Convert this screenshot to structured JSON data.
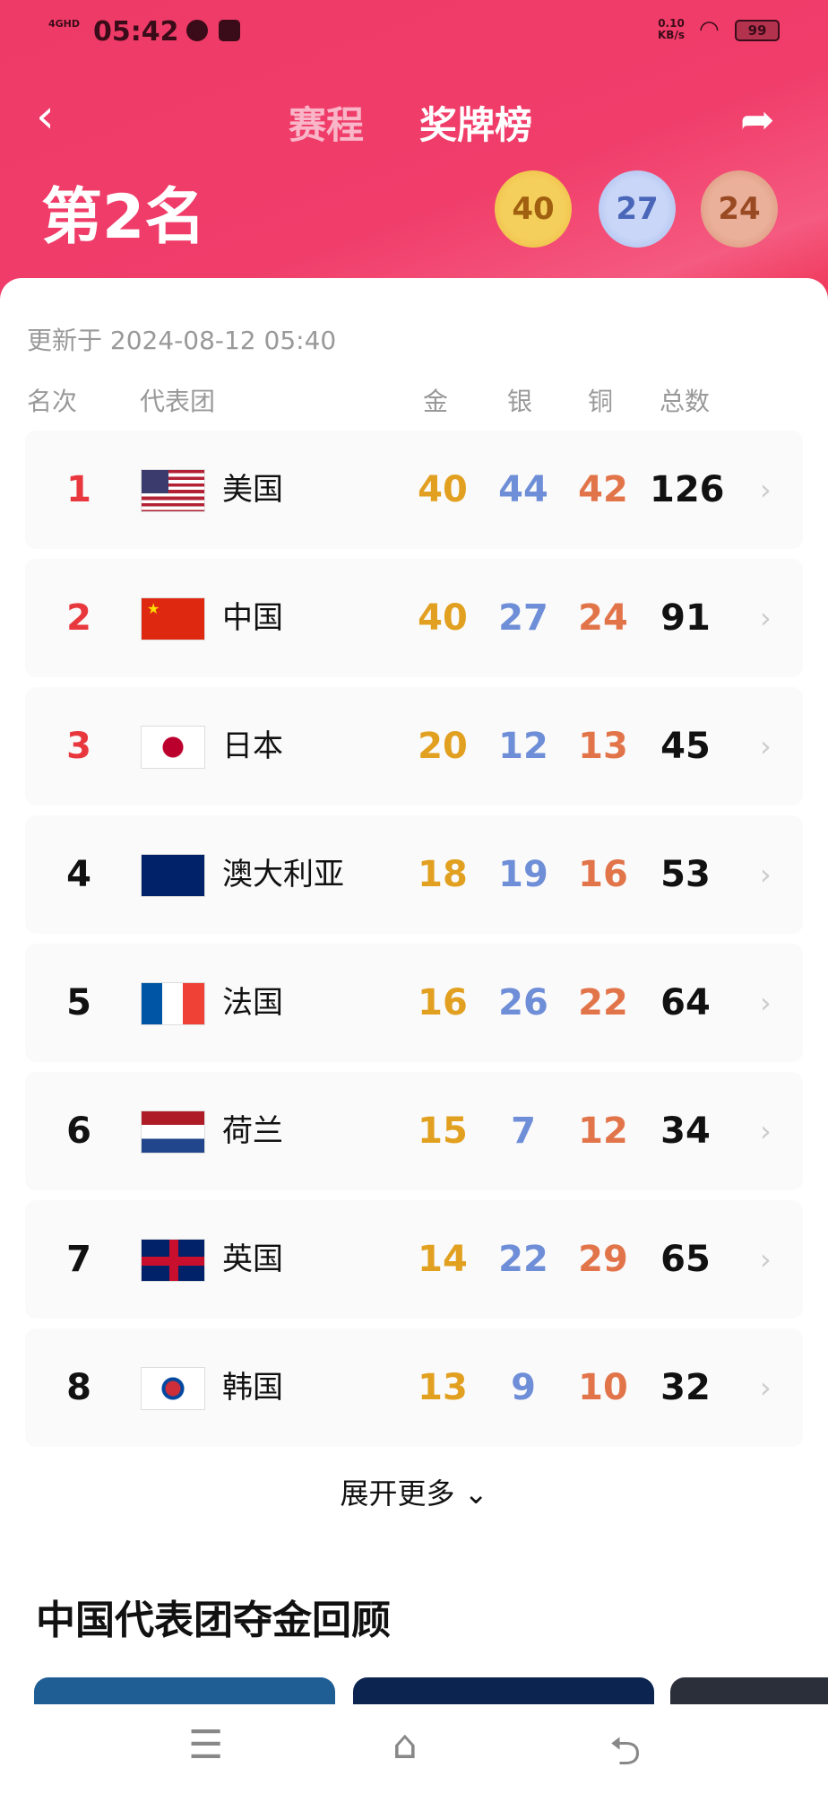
{
  "status": {
    "network": "4GHD",
    "time": "05:42",
    "speed": "0.10",
    "speed_unit": "KB/s",
    "battery": "99"
  },
  "nav": {
    "tabs": [
      {
        "label": "赛程",
        "active": false
      },
      {
        "label": "奖牌榜",
        "active": true
      }
    ]
  },
  "summary": {
    "rank_label": "第2名",
    "gold": "40",
    "silver": "27",
    "bronze": "24"
  },
  "table": {
    "updated": "更新于 2024-08-12 05:40",
    "headers": {
      "rank": "名次",
      "team": "代表团",
      "gold": "金",
      "silver": "银",
      "bronze": "铜",
      "total": "总数"
    },
    "rows": [
      {
        "rank": "1",
        "flag": "us",
        "name": "美国",
        "gold": "40",
        "silver": "44",
        "bronze": "42",
        "total": "126"
      },
      {
        "rank": "2",
        "flag": "cn",
        "name": "中国",
        "gold": "40",
        "silver": "27",
        "bronze": "24",
        "total": "91"
      },
      {
        "rank": "3",
        "flag": "jp",
        "name": "日本",
        "gold": "20",
        "silver": "12",
        "bronze": "13",
        "total": "45"
      },
      {
        "rank": "4",
        "flag": "au",
        "name": "澳大利亚",
        "gold": "18",
        "silver": "19",
        "bronze": "16",
        "total": "53"
      },
      {
        "rank": "5",
        "flag": "fr",
        "name": "法国",
        "gold": "16",
        "silver": "26",
        "bronze": "22",
        "total": "64"
      },
      {
        "rank": "6",
        "flag": "nl",
        "name": "荷兰",
        "gold": "15",
        "silver": "7",
        "bronze": "12",
        "total": "34"
      },
      {
        "rank": "7",
        "flag": "gb",
        "name": "英国",
        "gold": "14",
        "silver": "22",
        "bronze": "29",
        "total": "65"
      },
      {
        "rank": "8",
        "flag": "kr",
        "name": "韩国",
        "gold": "13",
        "silver": "9",
        "bronze": "10",
        "total": "32"
      }
    ]
  },
  "expand_label": "展开更多",
  "section_title": "中国代表团夺金回顾",
  "colors": {
    "header": "#f03d6a",
    "gold": "#e2a020",
    "silver": "#6f8ed8",
    "bronze": "#e2744a",
    "top_rank": "#e8383e"
  }
}
